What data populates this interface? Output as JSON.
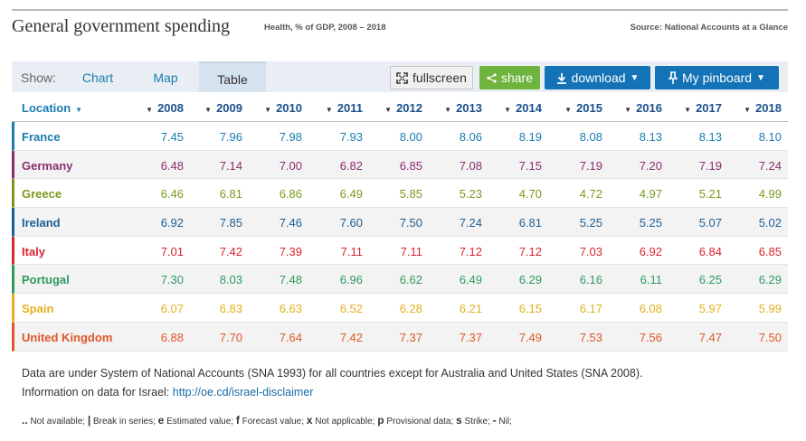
{
  "header": {
    "title": "General government spending",
    "subtitle": "Health, % of GDP, 2008 – 2018",
    "source": "Source: National Accounts at a Glance"
  },
  "toolbar": {
    "show_label": "Show:",
    "tabs": [
      {
        "label": "Chart"
      },
      {
        "label": "Map"
      },
      {
        "label": "Table",
        "active": true
      }
    ],
    "fullscreen_label": "fullscreen",
    "share_label": "share",
    "download_label": "download",
    "pinboard_label": "My pinboard"
  },
  "chart_data": {
    "type": "table",
    "location_header": "Location",
    "years": [
      "2008",
      "2009",
      "2010",
      "2011",
      "2012",
      "2013",
      "2014",
      "2015",
      "2016",
      "2017",
      "2018"
    ],
    "rows": [
      {
        "location": "France",
        "color": "#1a7cb0",
        "values": [
          "7.45",
          "7.96",
          "7.98",
          "7.93",
          "8.00",
          "8.06",
          "8.19",
          "8.08",
          "8.13",
          "8.13",
          "8.10"
        ]
      },
      {
        "location": "Germany",
        "color": "#8b2e6e",
        "values": [
          "6.48",
          "7.14",
          "7.00",
          "6.82",
          "6.85",
          "7.08",
          "7.15",
          "7.19",
          "7.20",
          "7.19",
          "7.24"
        ]
      },
      {
        "location": "Greece",
        "color": "#7a9a1a",
        "values": [
          "6.46",
          "6.81",
          "6.86",
          "6.49",
          "5.85",
          "5.23",
          "4.70",
          "4.72",
          "4.97",
          "5.21",
          "4.99"
        ]
      },
      {
        "location": "Ireland",
        "color": "#1d5e94",
        "values": [
          "6.92",
          "7.85",
          "7.46",
          "7.60",
          "7.50",
          "7.24",
          "6.81",
          "5.25",
          "5.25",
          "5.07",
          "5.02"
        ]
      },
      {
        "location": "Italy",
        "color": "#d9252f",
        "values": [
          "7.01",
          "7.42",
          "7.39",
          "7.11",
          "7.11",
          "7.12",
          "7.12",
          "7.03",
          "6.92",
          "6.84",
          "6.85"
        ]
      },
      {
        "location": "Portugal",
        "color": "#2f9a5f",
        "values": [
          "7.30",
          "8.03",
          "7.48",
          "6.96",
          "6.62",
          "6.49",
          "6.29",
          "6.16",
          "6.11",
          "6.25",
          "6.29"
        ]
      },
      {
        "location": "Spain",
        "color": "#e3b01e",
        "values": [
          "6.07",
          "6.83",
          "6.63",
          "6.52",
          "6.28",
          "6.21",
          "6.15",
          "6.17",
          "6.08",
          "5.97",
          "5.99"
        ]
      },
      {
        "location": "United Kingdom",
        "color": "#e0562a",
        "values": [
          "6.88",
          "7.70",
          "7.64",
          "7.42",
          "7.37",
          "7.37",
          "7.49",
          "7.53",
          "7.56",
          "7.47",
          "7.50"
        ]
      }
    ]
  },
  "notes": {
    "line1": "Data are under System of National Accounts (SNA 1993) for all countries except for Australia and United States (SNA 2008).",
    "line2_prefix": "Information on data for Israel: ",
    "line2_link": "http://oe.cd/israel-disclaimer"
  },
  "legend": [
    {
      "sym": "..",
      "text": "Not available;"
    },
    {
      "sym": "|",
      "text": "Break in series;"
    },
    {
      "sym": "e",
      "text": "Estimated value;"
    },
    {
      "sym": "f",
      "text": "Forecast value;"
    },
    {
      "sym": "x",
      "text": "Not applicable;"
    },
    {
      "sym": "p",
      "text": "Provisional data;"
    },
    {
      "sym": "s",
      "text": "Strike;"
    },
    {
      "sym": "-",
      "text": "Nil;"
    }
  ]
}
